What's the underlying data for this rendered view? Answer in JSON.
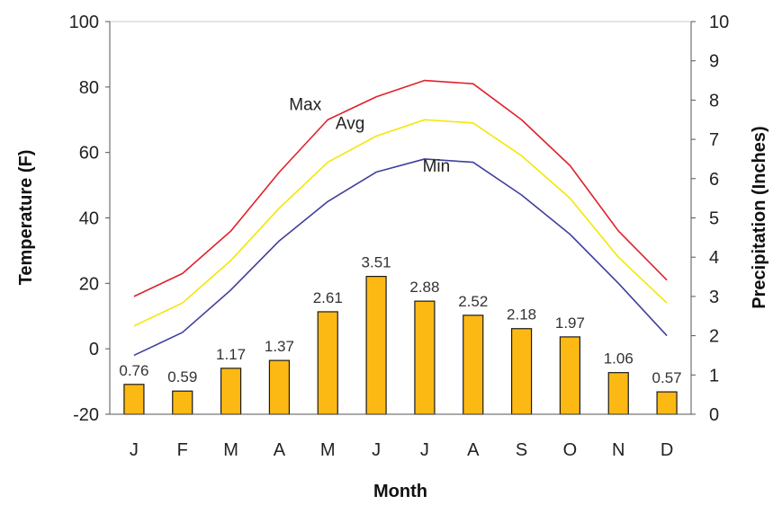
{
  "chart_data": {
    "type": "bar",
    "categories": [
      "J",
      "F",
      "M",
      "A",
      "M",
      "J",
      "J",
      "A",
      "S",
      "O",
      "N",
      "D"
    ],
    "xlabel": "Month",
    "ylabel": "Temperature (F)",
    "y2label": "Precipitation (Inches)",
    "ylim": [
      -20,
      100
    ],
    "y2lim": [
      0,
      10
    ],
    "yticks": [
      "100",
      "80",
      "60",
      "40",
      "20",
      "0",
      "-20"
    ],
    "y2ticks": [
      "10",
      "9",
      "8",
      "7",
      "6",
      "5",
      "4",
      "3",
      "2",
      "1",
      "0"
    ],
    "grid": false,
    "bar_series": {
      "axis": "secondary",
      "values": [
        0.76,
        0.59,
        1.17,
        1.37,
        2.61,
        3.51,
        2.88,
        2.52,
        2.18,
        1.97,
        1.06,
        0.57
      ],
      "labels": [
        "0.76",
        "0.59",
        "1.17",
        "1.37",
        "2.61",
        "3.51",
        "2.88",
        "2.52",
        "2.18",
        "1.97",
        "1.06",
        "0.57"
      ],
      "color": "#FDB913"
    },
    "series": [
      {
        "name": "Max",
        "axis": "primary",
        "color": "#E0212C",
        "values": [
          16,
          23,
          36,
          54,
          70,
          77,
          82,
          81,
          70,
          56,
          36,
          21
        ]
      },
      {
        "name": "Avg",
        "axis": "primary",
        "color": "#F5E600",
        "values": [
          7,
          14,
          27,
          43,
          57,
          65,
          70,
          69,
          59,
          46,
          28,
          14
        ]
      },
      {
        "name": "Min",
        "axis": "primary",
        "color": "#3F3F9C",
        "values": [
          -2,
          5,
          18,
          33,
          45,
          54,
          58,
          57,
          47,
          35,
          20,
          4
        ]
      }
    ]
  }
}
